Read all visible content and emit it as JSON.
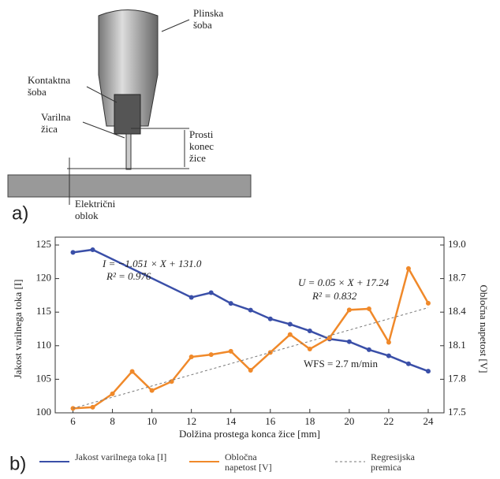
{
  "diagram": {
    "panel_label": "a)",
    "labels": {
      "gas_nozzle": [
        "Plinska",
        "šoba"
      ],
      "contact_tip": [
        "Kontaktna",
        "šoba"
      ],
      "wire": [
        "Varilna",
        "žica"
      ],
      "stickout": [
        "Prosti",
        "konec",
        "žice"
      ],
      "arc": [
        "Električni",
        "oblok"
      ]
    }
  },
  "chart_data": {
    "type": "line",
    "panel_label": "b)",
    "x_label": "Dolžina prostega konca žice [mm]",
    "y_label": "Jakost varilnega toka [I]",
    "y2_label": "Obločna napetost [V]",
    "xlim": [
      5.1,
      24.8
    ],
    "xticks": [
      6,
      8,
      10,
      12,
      14,
      16,
      18,
      20,
      22,
      24
    ],
    "ylim": [
      100,
      125
    ],
    "yticks": [
      100,
      105,
      110,
      115,
      120,
      125
    ],
    "y2lim": [
      17.5,
      19
    ],
    "y2ticks": [
      17.5,
      17.8,
      18.1,
      18.4,
      18.7,
      {
        "value": 19,
        "label": "19.0"
      }
    ],
    "series": [
      {
        "name": "Jakost varilnega toka [I]",
        "color": "#3a4fa8",
        "marker": true,
        "x": [
          6,
          7,
          12,
          13,
          14,
          15,
          16,
          17,
          18,
          19,
          20,
          21,
          22,
          23,
          24
        ],
        "values": [
          123.9,
          124.3,
          117.2,
          117.9,
          116.3,
          115.3,
          114.0,
          113.2,
          112.2,
          111.0,
          110.6,
          109.4,
          108.5,
          107.3,
          106.2
        ]
      },
      {
        "name": "Obločna napetost [V]",
        "color": "#f0892a",
        "marker": true,
        "axis": "y2",
        "x": [
          6,
          7,
          8,
          9,
          10,
          11,
          12,
          13,
          14,
          15,
          16,
          17,
          18,
          19,
          20,
          21,
          22,
          23,
          24
        ],
        "values": [
          17.54,
          17.55,
          17.67,
          17.87,
          17.7,
          17.78,
          18.0,
          18.02,
          18.05,
          17.88,
          18.04,
          18.2,
          18.07,
          18.17,
          18.42,
          18.43,
          18.13,
          18.79,
          18.48
        ]
      },
      {
        "name": "Regresijska premica",
        "color": "#777777",
        "dash": true,
        "axis": "y2",
        "x": [
          6,
          24
        ],
        "values": [
          17.54,
          18.44
        ]
      }
    ],
    "annotations": [
      "I = −1.051 × X + 131.0",
      "R² = 0.976",
      "U = 0.05 × X + 17.24",
      "R² = 0.832",
      "WFS = 2.7 m/min"
    ]
  }
}
